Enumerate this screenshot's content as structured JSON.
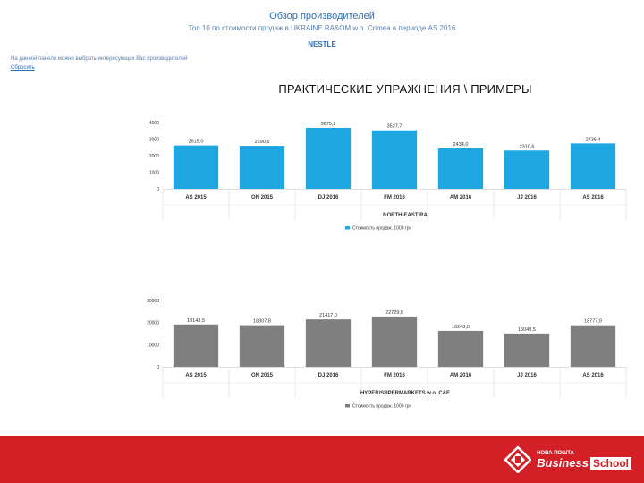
{
  "header": {
    "title": "Обзор производителей",
    "subtitle": "Топ 10 по стоимости продаж в UKRAINE RA&OM w.o. Crimea в периоде AS 2016",
    "brand": "NESTLE",
    "note": "На данной панели можно выбрать интересующих Вас производителей",
    "reset_link": "Сбросить"
  },
  "heading": "ПРАКТИЧЕСКИЕ УПРАЖНЕНИЯ \\ ПРИМЕРЫ",
  "chart_data": [
    {
      "type": "bar",
      "categories": [
        "AS 2015",
        "ON 2015",
        "DJ 2016",
        "FM 2016",
        "AM 2016",
        "JJ 2016",
        "AS 2016"
      ],
      "values": [
        2615.0,
        2590.6,
        3675.2,
        3527.7,
        2434.0,
        2310.6,
        2736.4
      ],
      "value_labels": [
        "2615,0",
        "2590,6",
        "3675,2",
        "3527,7",
        "2434,0",
        "2310,6",
        "2736,4"
      ],
      "ylim": [
        0,
        4000
      ],
      "yticks": [
        "4000",
        "3000",
        "2000",
        "1000",
        "0"
      ],
      "xlabel": "NORTH-EAST RA",
      "legend": "Стоимость продаж, 1000 грн",
      "color": "#1ea7e1"
    },
    {
      "type": "bar",
      "categories": [
        "AS 2015",
        "ON 2015",
        "DJ 2016",
        "FM 2016",
        "AM 2016",
        "JJ 2016",
        "AS 2016"
      ],
      "values": [
        19143.5,
        18807.8,
        21417.0,
        22729.6,
        16243.0,
        15049.5,
        18777.9
      ],
      "value_labels": [
        "19143,5",
        "18807,8",
        "21417,0",
        "22729,6",
        "16243,0",
        "15049,5",
        "18777,9"
      ],
      "ylim": [
        0,
        30000
      ],
      "yticks": [
        "30000",
        "20000",
        "10000",
        "0"
      ],
      "xlabel": "HYPER/SUPERMARKETS w.o. C&E",
      "legend": "Стоимость продаж, 1000 грн",
      "color": "#7f7f7f"
    }
  ],
  "footer": {
    "logo_top": "НОВА ПОШТА",
    "logo_business": "Business",
    "logo_school": "School",
    "bg_color": "#d32027"
  }
}
